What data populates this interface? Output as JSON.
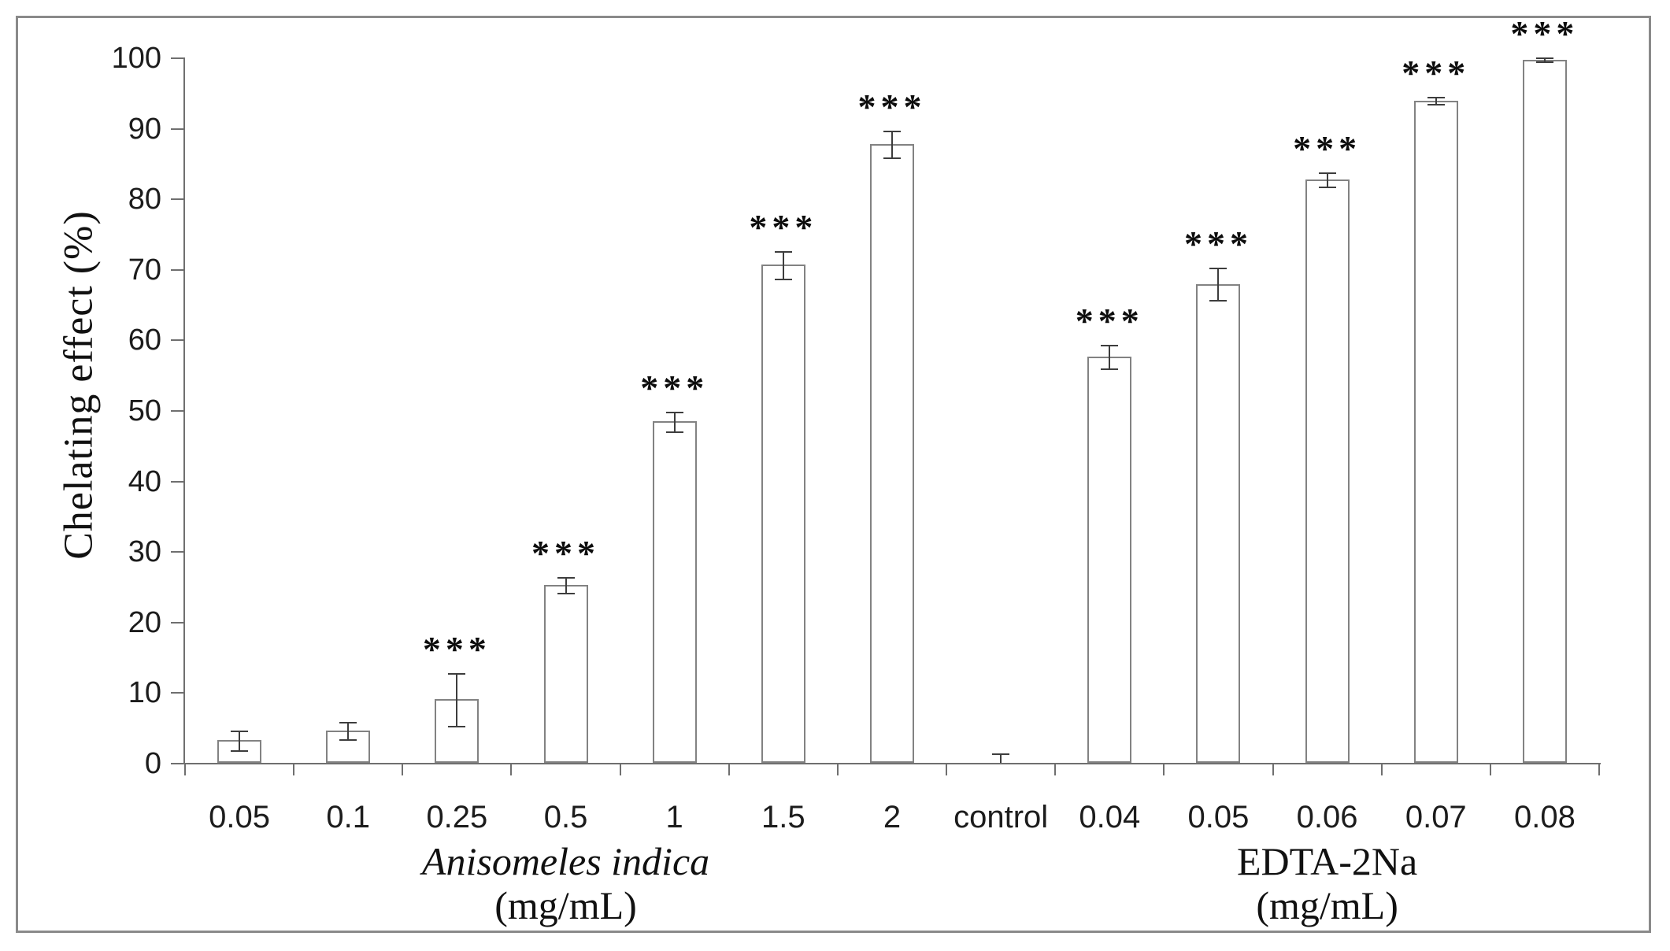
{
  "chart_data": {
    "type": "bar",
    "title": "",
    "ylabel": "Chelating effect (%)",
    "xlabel": "",
    "ylim": [
      0,
      100
    ],
    "y_ticks": [
      0,
      10,
      20,
      30,
      40,
      50,
      60,
      70,
      80,
      90,
      100
    ],
    "grid": false,
    "legend_position": "none",
    "bar_fill": "#ffffff",
    "bar_border_color": "#828282",
    "error_bar_color": "#3d3d3d",
    "axis_color": "#6f6f6f",
    "categories": [
      "0.05",
      "0.1",
      "0.25",
      "0.5",
      "1",
      "1.5",
      "2",
      "control",
      "0.04",
      "0.05",
      "0.06",
      "0.07",
      "0.08"
    ],
    "values": [
      3.2,
      4.6,
      9.0,
      25.2,
      48.4,
      70.6,
      87.7,
      0.3,
      57.6,
      67.9,
      82.7,
      93.9,
      99.7
    ],
    "errors": [
      1.4,
      1.2,
      3.7,
      1.1,
      1.4,
      2.0,
      1.9,
      1.0,
      1.7,
      2.3,
      1.0,
      0.5,
      0.3
    ],
    "significant": [
      false,
      false,
      true,
      true,
      true,
      true,
      true,
      false,
      true,
      true,
      true,
      true,
      true
    ],
    "significance_marker": "***",
    "groups": [
      {
        "line1": "Anisomeles indica",
        "line2": "(mg/mL)",
        "italic": true,
        "start": 0,
        "end": 6
      },
      {
        "line1": "EDTA-2Na",
        "line2": "(mg/mL)",
        "italic": false,
        "start": 8,
        "end": 12
      }
    ]
  }
}
